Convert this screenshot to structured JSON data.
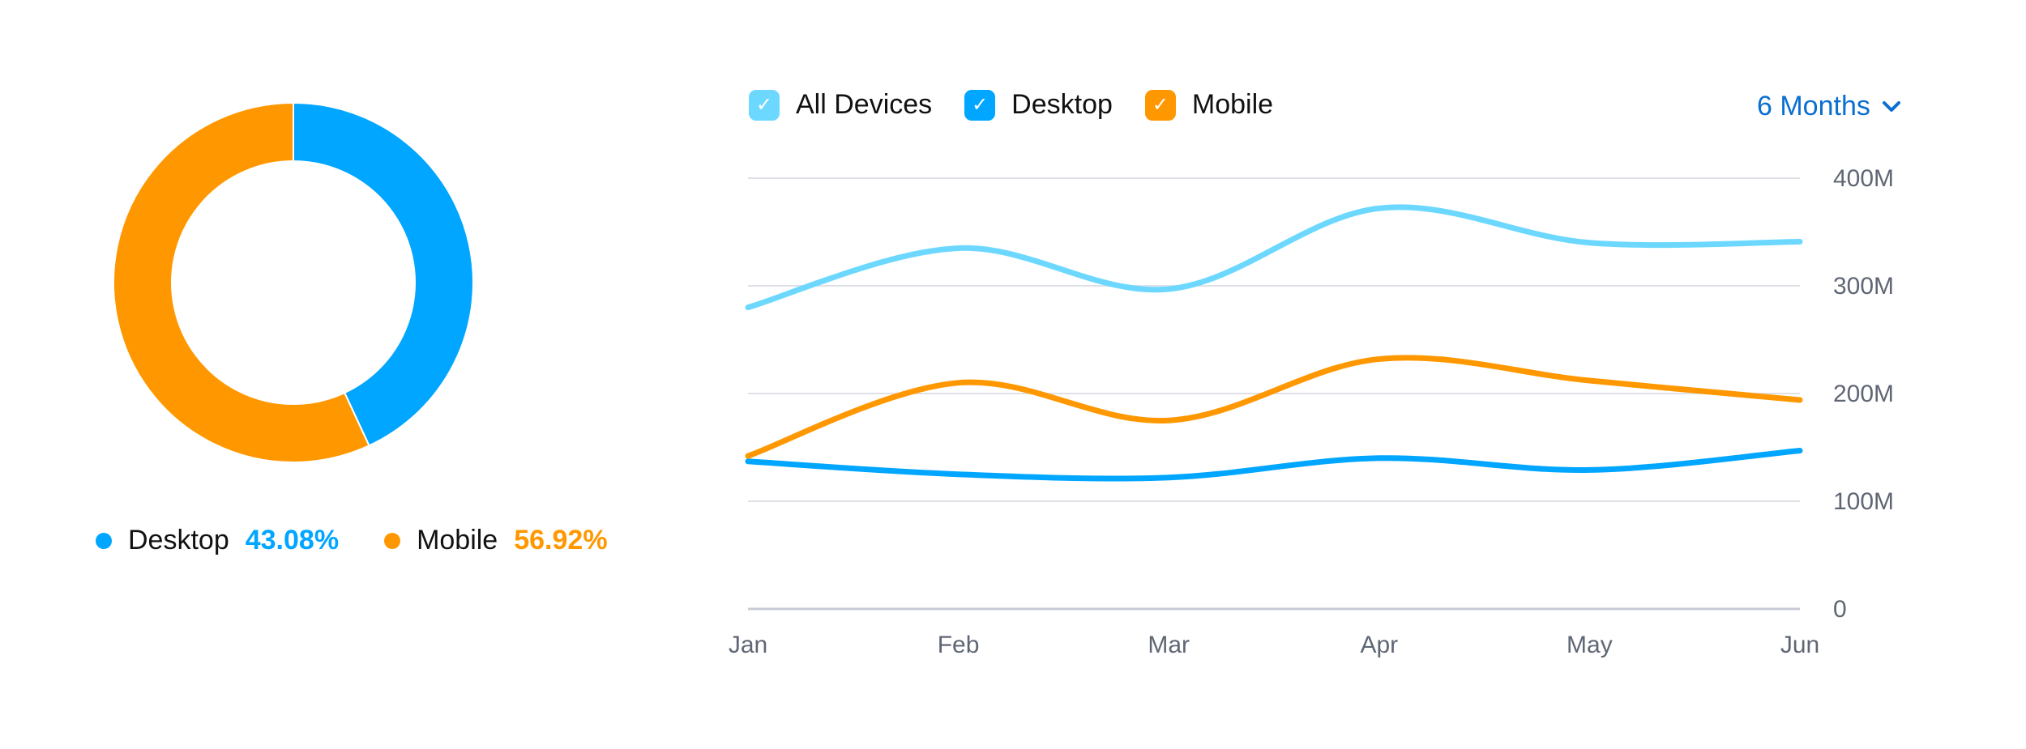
{
  "chart_data": [
    {
      "type": "pie",
      "donut": true,
      "slices": [
        {
          "name": "Desktop",
          "value": 43.08,
          "label": "43.08%",
          "color": "#00a6ff"
        },
        {
          "name": "Mobile",
          "value": 56.92,
          "label": "56.92%",
          "color": "#ff9800"
        }
      ]
    },
    {
      "type": "line",
      "categories": [
        "Jan",
        "Feb",
        "Mar",
        "Apr",
        "May",
        "Jun"
      ],
      "series": [
        {
          "name": "All Devices",
          "color": "#6dd8ff",
          "values": [
            280,
            335,
            297,
            372,
            340,
            341
          ]
        },
        {
          "name": "Desktop",
          "color": "#00a6ff",
          "values": [
            137,
            125,
            122,
            140,
            129,
            147
          ]
        },
        {
          "name": "Mobile",
          "color": "#ff9800",
          "values": [
            142,
            210,
            175,
            232,
            212,
            194
          ]
        }
      ],
      "unit": "M",
      "ylim": [
        0,
        400
      ],
      "yticks": [
        "0",
        "100M",
        "200M",
        "300M",
        "400M"
      ],
      "yaxis_position": "right",
      "grid": true,
      "legend_placement": "top-left"
    }
  ],
  "controls": {
    "period_label": "6 Months",
    "period_icon": "chevron-down-icon",
    "check_icon": "check-icon"
  }
}
